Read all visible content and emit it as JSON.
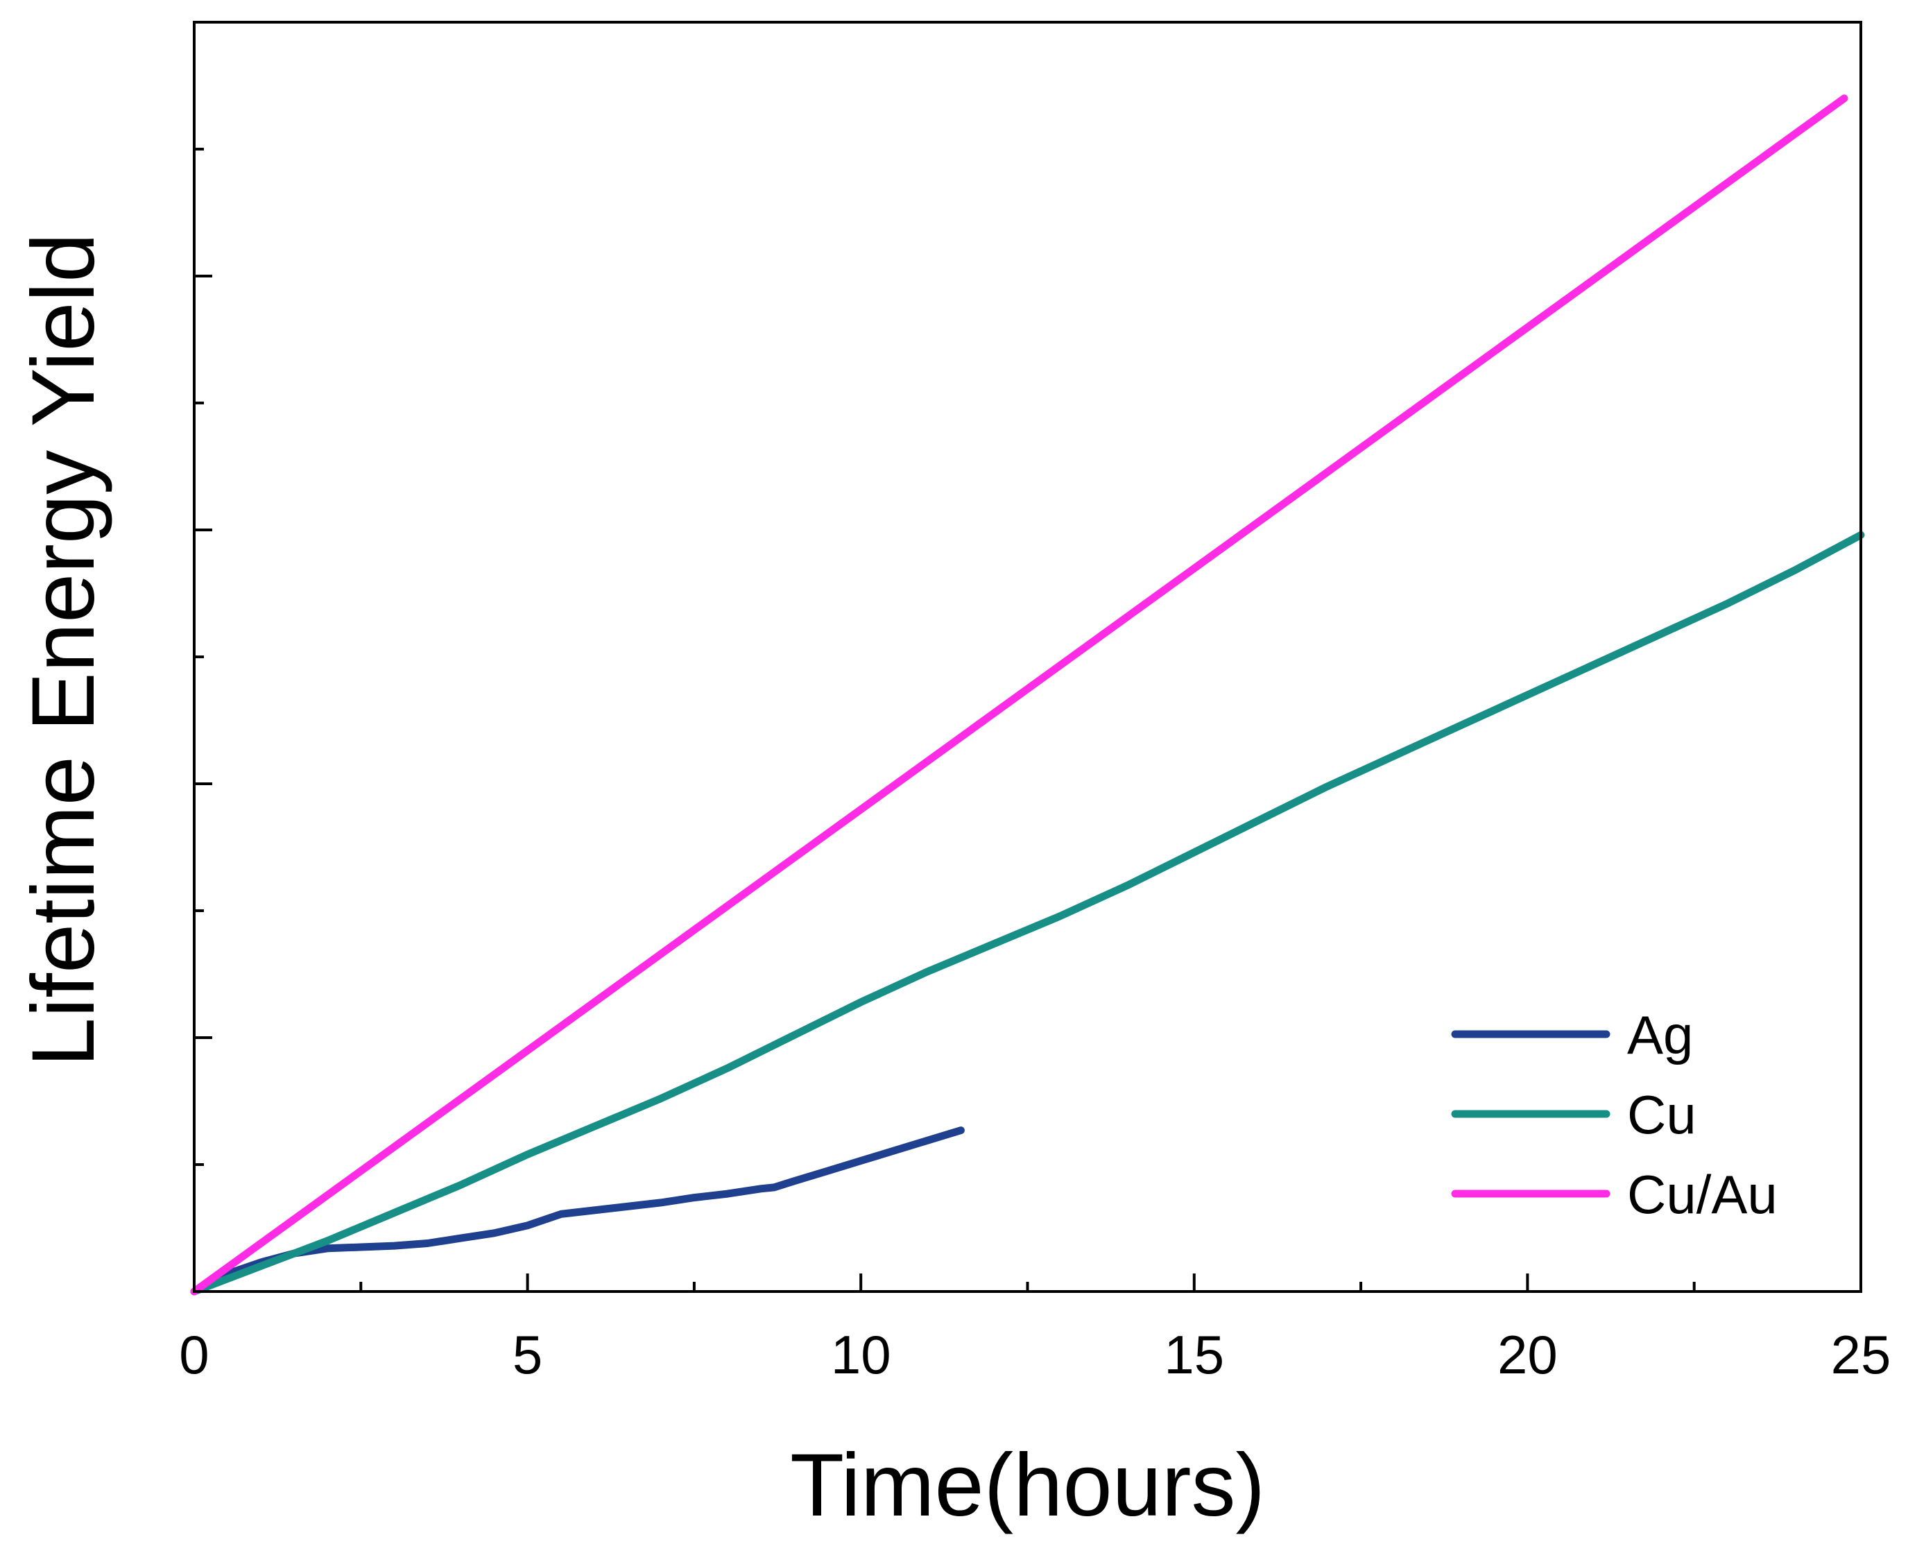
{
  "chart_data": {
    "type": "line",
    "title": "",
    "xlabel": "Time(hours)",
    "ylabel": "Lifetime Energy Yield",
    "xlim": [
      0,
      25
    ],
    "ylim": [
      0,
      10
    ],
    "xticks": [
      0,
      5,
      10,
      15,
      20,
      25
    ],
    "xtick_labels": [
      "0",
      "5",
      "10",
      "15",
      "20",
      "25"
    ],
    "yticks": [
      2,
      4,
      6,
      8
    ],
    "ytick_labels_shown": false,
    "grid": false,
    "legend": {
      "position": "bottom-right"
    },
    "series": [
      {
        "name": "Ag",
        "color": "#1f3f8f",
        "x": [
          0,
          0.5,
          1,
          1.5,
          2,
          2.5,
          3,
          3.5,
          4,
          4.5,
          5,
          5.5,
          6,
          6.5,
          7,
          7.5,
          8,
          8.5,
          8.7,
          9,
          9.5,
          10,
          10.5,
          11,
          11.5
        ],
        "y": [
          0,
          0.14,
          0.23,
          0.3,
          0.34,
          0.35,
          0.36,
          0.38,
          0.42,
          0.46,
          0.52,
          0.61,
          0.64,
          0.67,
          0.7,
          0.74,
          0.77,
          0.81,
          0.82,
          0.87,
          0.95,
          1.03,
          1.11,
          1.19,
          1.27
        ]
      },
      {
        "name": "Cu",
        "color": "#178f86",
        "x": [
          0,
          1,
          2,
          3,
          4,
          5,
          6,
          7,
          8,
          9,
          10,
          11,
          12,
          13,
          14,
          15,
          16,
          17,
          18,
          19,
          20,
          21,
          22,
          23,
          24,
          25
        ],
        "y": [
          0,
          0.2,
          0.4,
          0.62,
          0.84,
          1.08,
          1.3,
          1.52,
          1.76,
          2.02,
          2.28,
          2.52,
          2.74,
          2.96,
          3.2,
          3.46,
          3.72,
          3.98,
          4.22,
          4.46,
          4.7,
          4.94,
          5.18,
          5.42,
          5.68,
          5.96
        ]
      },
      {
        "name": "Cu/Au",
        "color": "#ff2ce6",
        "x": [
          0,
          24.75
        ],
        "y": [
          0,
          9.4
        ]
      }
    ]
  }
}
